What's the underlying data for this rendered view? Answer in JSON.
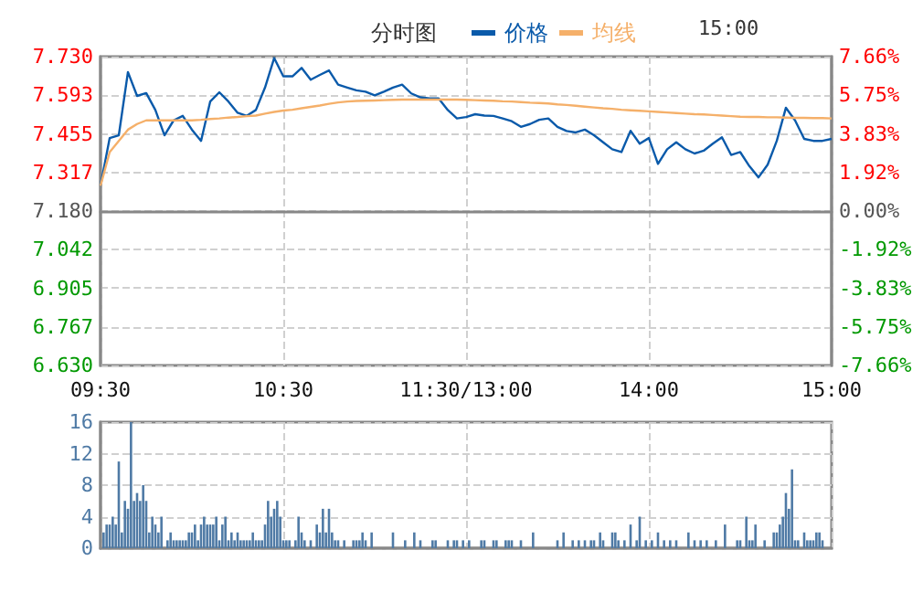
{
  "chart_data": [
    {
      "type": "line",
      "title": "分时图",
      "annotations": [
        "15:00"
      ],
      "legend": "top",
      "grid": true,
      "categories": [
        "09:30",
        null,
        null,
        null,
        null,
        null,
        null,
        null,
        null,
        null,
        null,
        null,
        null,
        null,
        null,
        null,
        null,
        null,
        null,
        null,
        "10:30",
        null,
        null,
        null,
        null,
        null,
        null,
        null,
        null,
        null,
        null,
        null,
        null,
        null,
        null,
        null,
        null,
        null,
        null,
        null,
        "11:30/13:00",
        null,
        null,
        null,
        null,
        null,
        null,
        null,
        null,
        null,
        null,
        null,
        null,
        null,
        null,
        null,
        null,
        null,
        null,
        null,
        "14:00",
        null,
        null,
        null,
        null,
        null,
        null,
        null,
        null,
        null,
        null,
        null,
        null,
        null,
        null,
        null,
        null,
        null,
        null,
        null,
        "15:00"
      ],
      "ylim": [
        6.63,
        7.73
      ],
      "yticks": [
        {
          "value": 6.63,
          "label": "6.630"
        },
        {
          "value": 6.767,
          "label": "6.767"
        },
        {
          "value": 6.905,
          "label": "6.905"
        },
        {
          "value": 7.042,
          "label": "7.042"
        },
        {
          "value": 7.18,
          "label": "7.180"
        },
        {
          "value": 7.317,
          "label": "7.317"
        },
        {
          "value": 7.455,
          "label": "7.455"
        },
        {
          "value": 7.593,
          "label": "7.593"
        },
        {
          "value": 7.73,
          "label": "7.730"
        }
      ],
      "y2lim": [
        -7.66,
        7.66
      ],
      "y2ticks": [
        {
          "value": -7.66,
          "label": "-7.66%"
        },
        {
          "value": -5.75,
          "label": "-5.75%"
        },
        {
          "value": -3.83,
          "label": "-3.83%"
        },
        {
          "value": -1.92,
          "label": "-1.92%"
        },
        {
          "value": 0,
          "label": "0.00%"
        },
        {
          "value": 1.92,
          "label": "1.92%"
        },
        {
          "value": 3.83,
          "label": "3.83%"
        },
        {
          "value": 5.75,
          "label": "5.75%"
        },
        {
          "value": 7.66,
          "label": "7.66%"
        }
      ],
      "series": [
        {
          "name": "价格",
          "color": "#0a5aaa",
          "values": [
            7.27,
            7.44,
            7.45,
            7.675,
            7.59,
            7.6,
            7.54,
            7.45,
            7.503,
            7.519,
            7.47,
            7.43,
            7.57,
            7.603,
            7.57,
            7.53,
            7.519,
            7.54,
            7.62,
            7.725,
            7.66,
            7.66,
            7.69,
            7.648,
            7.665,
            7.681,
            7.63,
            7.62,
            7.61,
            7.605,
            7.592,
            7.605,
            7.62,
            7.63,
            7.599,
            7.585,
            7.581,
            7.581,
            7.54,
            7.51,
            7.515,
            7.525,
            7.52,
            7.519,
            7.51,
            7.5,
            7.48,
            7.49,
            7.505,
            7.51,
            7.48,
            7.465,
            7.46,
            7.47,
            7.45,
            7.425,
            7.4,
            7.39,
            7.466,
            7.42,
            7.44,
            7.348,
            7.4,
            7.425,
            7.4,
            7.385,
            7.395,
            7.42,
            7.443,
            7.38,
            7.39,
            7.34,
            7.3,
            7.345,
            7.43,
            7.548,
            7.503,
            7.437,
            7.43,
            7.43,
            7.437
          ]
        },
        {
          "name": "均线",
          "color": "#f5b06a",
          "values": [
            7.27,
            7.39,
            7.43,
            7.47,
            7.49,
            7.503,
            7.503,
            7.503,
            7.503,
            7.503,
            7.503,
            7.505,
            7.508,
            7.51,
            7.513,
            7.515,
            7.518,
            7.52,
            7.527,
            7.533,
            7.538,
            7.541,
            7.546,
            7.551,
            7.556,
            7.562,
            7.567,
            7.57,
            7.572,
            7.573,
            7.574,
            7.575,
            7.576,
            7.577,
            7.577,
            7.577,
            7.577,
            7.577,
            7.577,
            7.577,
            7.576,
            7.575,
            7.574,
            7.573,
            7.571,
            7.57,
            7.568,
            7.566,
            7.565,
            7.563,
            7.56,
            7.558,
            7.555,
            7.552,
            7.549,
            7.546,
            7.544,
            7.541,
            7.539,
            7.537,
            7.535,
            7.533,
            7.531,
            7.529,
            7.527,
            7.525,
            7.524,
            7.522,
            7.52,
            7.518,
            7.516,
            7.515,
            7.515,
            7.514,
            7.514,
            7.513,
            7.512,
            7.512,
            7.511,
            7.511,
            7.51
          ]
        }
      ]
    },
    {
      "type": "bar",
      "grid": true,
      "color": "#4f7aa5",
      "categories": [
        null,
        null,
        null,
        null,
        null,
        null,
        null,
        null,
        null,
        null,
        null,
        null,
        null,
        null,
        null,
        null,
        null,
        null,
        null,
        null,
        null,
        null,
        null,
        null,
        null,
        null,
        null,
        null,
        null,
        null,
        null,
        null,
        null,
        null,
        null,
        null,
        null,
        null,
        null,
        null,
        null,
        null,
        null,
        null,
        null,
        null,
        null,
        null,
        null,
        null,
        null,
        null,
        null,
        null,
        null,
        null,
        null,
        null,
        null,
        null,
        null,
        null,
        null,
        null,
        null,
        null,
        null,
        null,
        null,
        null,
        null,
        null,
        null,
        null,
        null,
        null,
        null,
        null,
        null,
        null,
        null,
        null,
        null,
        null,
        null,
        null,
        null,
        null,
        null,
        null,
        null,
        null,
        null,
        null,
        null,
        null,
        null,
        null,
        null,
        null,
        null,
        null,
        null,
        null,
        null,
        null,
        null,
        null,
        null,
        null,
        null,
        null,
        null,
        null,
        null,
        null,
        null,
        null,
        null,
        null,
        null,
        null,
        null,
        null,
        null,
        null,
        null,
        null,
        null,
        null,
        null,
        null,
        null,
        null,
        null,
        null,
        null,
        null,
        null,
        null,
        null,
        null,
        null,
        null,
        null,
        null,
        null,
        null,
        null,
        null,
        null,
        null,
        null,
        null,
        null,
        null,
        null,
        null,
        null,
        null,
        null,
        null,
        null,
        null,
        null,
        null,
        null,
        null,
        null,
        null,
        null,
        null,
        null,
        null,
        null,
        null,
        null,
        null,
        null,
        null,
        null,
        null,
        null,
        null,
        null,
        null,
        null,
        null,
        null,
        null,
        null,
        null,
        null,
        null,
        null,
        null,
        null,
        null,
        null,
        null,
        null,
        null,
        null,
        null,
        null,
        null,
        null,
        null,
        null,
        null,
        null,
        null,
        null,
        null,
        null,
        null,
        null,
        null,
        null,
        null,
        null,
        null,
        null,
        null,
        null,
        null,
        null,
        null,
        null,
        null,
        null,
        null,
        null,
        null,
        null,
        null,
        null,
        null,
        null,
        null,
        null
      ],
      "ylim": [
        0,
        16
      ],
      "yticks": [
        0,
        4,
        8,
        12,
        16
      ],
      "values": [
        null,
        2,
        3,
        3,
        4,
        3,
        11,
        2,
        6,
        5,
        16,
        6,
        7,
        6,
        8,
        6,
        2,
        4,
        3,
        2,
        4,
        null,
        1,
        2,
        1,
        1,
        1,
        1,
        1,
        2,
        2,
        3,
        1,
        3,
        4,
        3,
        3,
        3,
        4,
        1,
        3,
        4,
        1,
        2,
        1,
        2,
        1,
        1,
        1,
        1,
        2,
        1,
        1,
        1,
        3,
        6,
        4,
        5,
        6,
        4,
        1,
        1,
        1,
        null,
        1,
        4,
        2,
        1,
        null,
        1,
        null,
        3,
        2,
        5,
        2,
        5,
        2,
        1,
        1,
        null,
        1,
        null,
        null,
        1,
        1,
        1,
        2,
        1,
        null,
        2,
        null,
        null,
        null,
        null,
        null,
        null,
        2,
        null,
        null,
        null,
        1,
        null,
        null,
        2,
        null,
        1,
        null,
        null,
        null,
        1,
        1,
        null,
        null,
        null,
        1,
        null,
        1,
        1,
        null,
        1,
        null,
        1,
        null,
        null,
        null,
        1,
        1,
        null,
        null,
        1,
        1,
        null,
        null,
        1,
        1,
        1,
        null,
        null,
        1,
        null,
        null,
        null,
        2,
        null,
        null,
        null,
        null,
        null,
        null,
        null,
        1,
        null,
        2,
        null,
        null,
        1,
        null,
        1,
        null,
        1,
        null,
        1,
        1,
        null,
        2,
        1,
        null,
        null,
        2,
        2,
        1,
        null,
        1,
        null,
        3,
        null,
        1,
        4,
        null,
        1,
        null,
        1,
        null,
        2,
        null,
        1,
        null,
        1,
        null,
        1,
        null,
        null,
        null,
        2,
        null,
        1,
        null,
        1,
        null,
        1,
        null,
        null,
        1,
        null,
        null,
        3,
        null,
        null,
        null,
        1,
        1,
        null,
        4,
        1,
        1,
        3,
        null,
        null,
        1,
        null,
        null,
        2,
        2,
        3,
        4,
        7,
        5,
        10,
        1,
        1,
        null,
        2,
        1,
        1,
        1,
        2,
        2,
        1,
        null,
        null,
        null
      ]
    }
  ]
}
